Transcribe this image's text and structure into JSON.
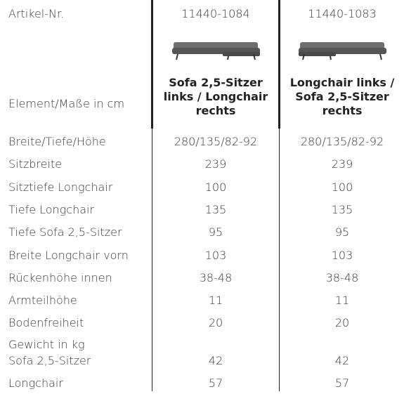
{
  "table": {
    "header": [
      "Artikel-Nr.",
      "11440-1084",
      "11440-1083"
    ],
    "element": [
      "Element/Maße in cm",
      "Sofa 2,5-Sitzer links / Longchair rechts",
      "Longchair links / Sofa 2,5-Sitzer rechts"
    ],
    "rows": [
      [
        "Breite/Tiefe/Höhe",
        "280/135/82-92",
        "280/135/82-92"
      ],
      [
        "Sitzbreite",
        "239",
        "239"
      ],
      [
        "Sitztiefe Longchair",
        "100",
        "100"
      ],
      [
        "Tiefe Longchair",
        "135",
        "135"
      ],
      [
        "Tiefe Sofa 2,5-Sitzer",
        "95",
        "95"
      ],
      [
        "Breite Longchair vorn",
        "103",
        "103"
      ],
      [
        "Rückenhöhe innen",
        "38-48",
        "38-48"
      ],
      [
        "Armteilhöhe",
        "11",
        "11"
      ],
      [
        "Bodenfreiheit",
        "20",
        "20"
      ]
    ],
    "weight_label": "Gewicht in kg",
    "weight_rows": [
      [
        "Sofa 2,5-Sitzer",
        "42",
        "42"
      ],
      [
        "Longchair",
        "57",
        "57"
      ]
    ]
  }
}
